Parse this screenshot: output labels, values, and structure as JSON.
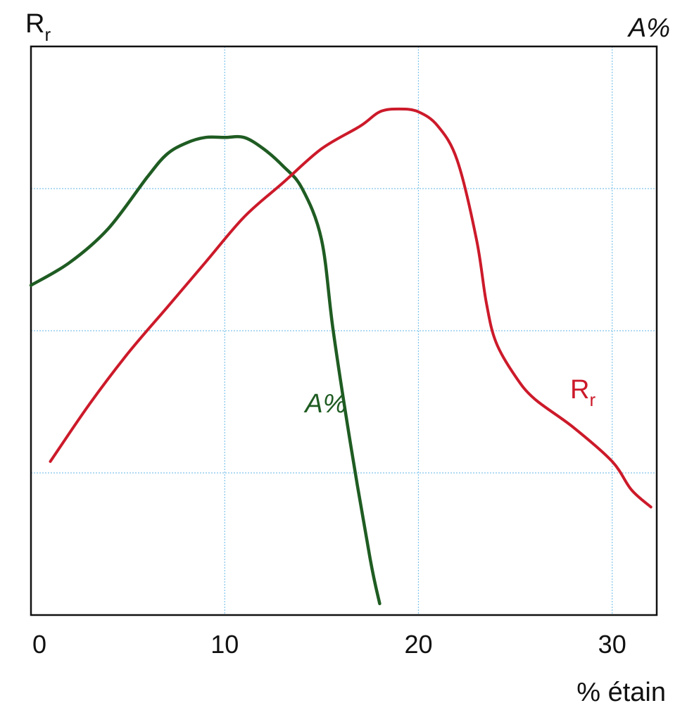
{
  "chart_data": {
    "type": "line",
    "xlabel": "% étain",
    "x_ticks": [
      0,
      10,
      20,
      30
    ],
    "xlim": [
      0,
      32.3
    ],
    "grid": true,
    "left_axis_label": "R",
    "left_axis_label_sub": "r",
    "right_axis_label": "A%",
    "colors": {
      "A%": "#1f5c22",
      "Rr": "#cc1a2a",
      "grid": "#7fc4ec"
    },
    "series": [
      {
        "name": "A%",
        "label_text": "A%",
        "axis": "right",
        "x": [
          0,
          2,
          4,
          6,
          7,
          8,
          9,
          10,
          11,
          12,
          13,
          14,
          15,
          15.6,
          16.5,
          17.5,
          18
        ],
        "y": [
          0.58,
          0.62,
          0.68,
          0.77,
          0.81,
          0.83,
          0.84,
          0.84,
          0.84,
          0.82,
          0.79,
          0.75,
          0.66,
          0.5,
          0.3,
          0.1,
          0.02
        ]
      },
      {
        "name": "Rr",
        "label_text": "R",
        "label_sub": "r",
        "axis": "left",
        "x": [
          1,
          3,
          5,
          7,
          9,
          11,
          13,
          15,
          17,
          18,
          19,
          20,
          21,
          22,
          23,
          23.5,
          24,
          25,
          26,
          28,
          30,
          31,
          32
        ],
        "y": [
          0.27,
          0.37,
          0.46,
          0.54,
          0.62,
          0.7,
          0.76,
          0.82,
          0.86,
          0.885,
          0.89,
          0.885,
          0.86,
          0.8,
          0.66,
          0.55,
          0.48,
          0.42,
          0.38,
          0.33,
          0.27,
          0.22,
          0.19
        ]
      }
    ]
  }
}
